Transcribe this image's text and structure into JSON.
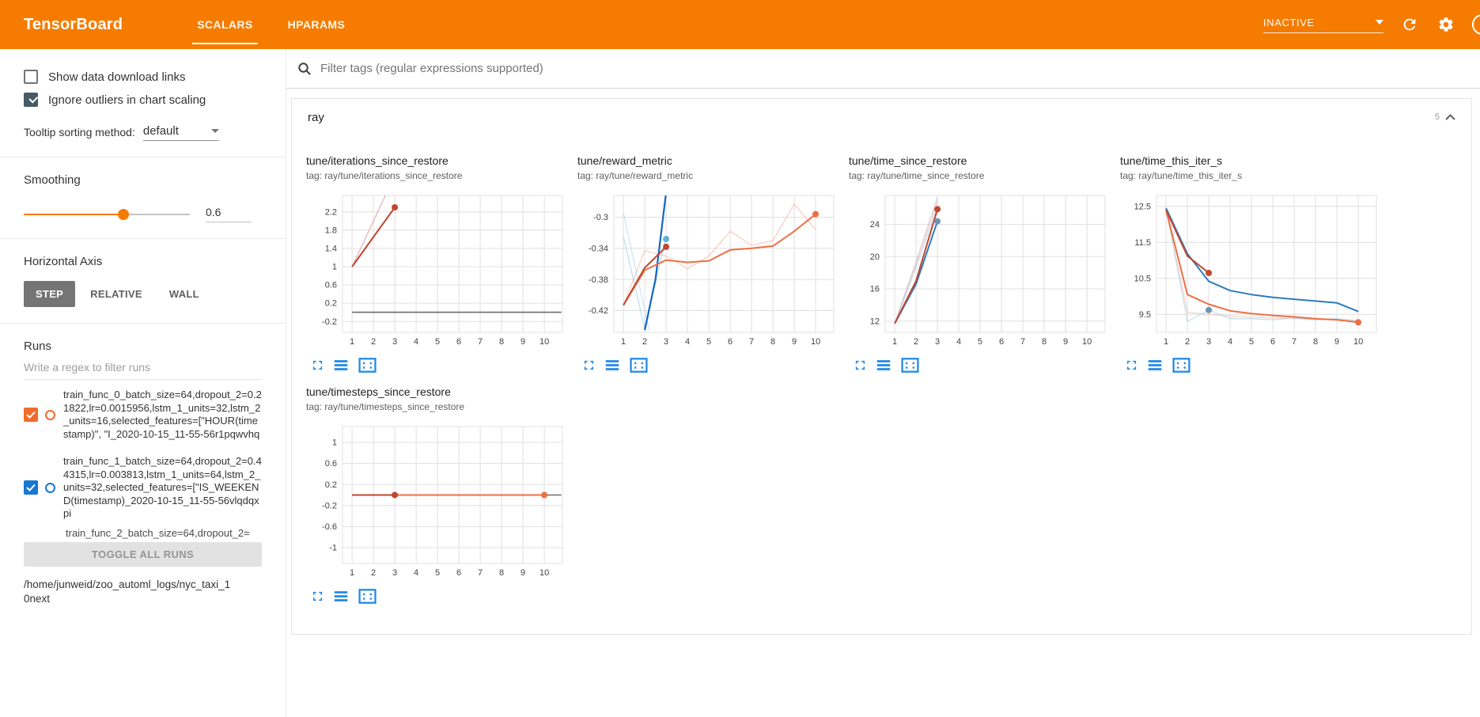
{
  "header": {
    "title": "TensorBoard",
    "tabs": [
      {
        "label": "SCALARS",
        "active": true
      },
      {
        "label": "HPARAMS",
        "active": false
      }
    ],
    "status": "INACTIVE"
  },
  "sidebar": {
    "checkboxes": [
      {
        "label": "Show data download links",
        "checked": false
      },
      {
        "label": "Ignore outliers in chart scaling",
        "checked": true
      }
    ],
    "tooltip_sort_label": "Tooltip sorting method:",
    "tooltip_sort_value": "default",
    "smoothing_label": "Smoothing",
    "smoothing_value": "0.6",
    "horizontal_axis_label": "Horizontal Axis",
    "axis_buttons": [
      {
        "label": "STEP",
        "active": true
      },
      {
        "label": "RELATIVE",
        "active": false
      },
      {
        "label": "WALL",
        "active": false
      }
    ],
    "runs_label": "Runs",
    "runs_filter_placeholder": "Write a regex to filter runs",
    "runs": [
      {
        "label": "train_func_0_batch_size=64,dropout_2=0.21822,lr=0.0015956,lstm_1_units=32,lstm_2_units=16,selected_features=[\"HOUR(timestamp)\", \"I_2020-10-15_11-55-56r1pqwvhq",
        "checked": true,
        "color": "#ef6c2d"
      },
      {
        "label": "train_func_1_batch_size=64,dropout_2=0.44315,lr=0.003813,lstm_1_units=64,lstm_2_units=32,selected_features=[\"IS_WEEKEND(timestamp)_2020-10-15_11-55-56vlqdqxpi",
        "checked": true,
        "color": "#1976d2"
      },
      {
        "label": "train_func_2_batch_size=64,dropout_2=",
        "checked": true,
        "color": "#ef6c2d",
        "partial": true
      }
    ],
    "toggle_all_label": "TOGGLE ALL RUNS",
    "log_path": "/home/junweid/zoo_automl_logs/nyc_taxi_10next"
  },
  "main": {
    "filter_placeholder": "Filter tags (regular expressions supported)",
    "section": {
      "title": "ray",
      "count": "5"
    }
  },
  "chart_data": [
    {
      "type": "line",
      "title": "tune/iterations_since_restore",
      "tag": "tag: ray/tune/iterations_since_restore",
      "xlim": [
        0.55,
        10.85
      ],
      "ylim": [
        -0.44,
        2.56
      ],
      "xticks": [
        1,
        2,
        3,
        4,
        5,
        6,
        7,
        8,
        9,
        10
      ],
      "yticks": [
        -0.2,
        0.2,
        0.6,
        1,
        1.4,
        1.8,
        2.2
      ],
      "series": [
        {
          "name": "run-gray-baseline",
          "color": "#6b6b6b",
          "width": 1.6,
          "opacity": 1,
          "points": [
            [
              1,
              0
            ],
            [
              10.8,
              0
            ]
          ]
        },
        {
          "name": "train_func-unsmoothed-a",
          "color": "#b9b2d4",
          "width": 1.3,
          "opacity": 0.6,
          "points": [
            [
              1,
              1
            ],
            [
              2,
              2
            ],
            [
              3,
              3
            ]
          ]
        },
        {
          "name": "train_func_0-unsmoothed",
          "color": "#f4a894",
          "width": 1.3,
          "opacity": 0.55,
          "points": [
            [
              1,
              1
            ],
            [
              2,
              2
            ],
            [
              3,
              3
            ]
          ]
        },
        {
          "name": "train_func_0-smoothed",
          "color": "#bf4730",
          "width": 2,
          "opacity": 1,
          "points": [
            [
              1,
              1
            ],
            [
              2,
              1.65
            ],
            [
              3,
              2.3
            ]
          ]
        }
      ],
      "dots": [
        {
          "x": 3,
          "y": 2.3,
          "color": "#bf4730"
        }
      ]
    },
    {
      "type": "line",
      "title": "tune/reward_metric",
      "tag": "tag: ray/tune/reward_metric",
      "xlim": [
        0.55,
        10.85
      ],
      "ylim": [
        -0.448,
        -0.272
      ],
      "xticks": [
        1,
        2,
        3,
        4,
        5,
        6,
        7,
        8,
        9,
        10
      ],
      "yticks": [
        -0.42,
        -0.38,
        -0.34,
        -0.3
      ],
      "series": [
        {
          "name": "train_func_0-unsmoothed",
          "color": "#f4a894",
          "width": 1.3,
          "opacity": 0.55,
          "points": [
            [
              1,
              -0.413
            ],
            [
              2,
              -0.343
            ],
            [
              3,
              -0.35
            ],
            [
              4,
              -0.366
            ],
            [
              5,
              -0.35
            ],
            [
              6,
              -0.318
            ],
            [
              7,
              -0.336
            ],
            [
              8,
              -0.33
            ],
            [
              9,
              -0.283
            ],
            [
              10,
              -0.316
            ]
          ]
        },
        {
          "name": "train_func_1-unsmoothed",
          "color": "#9fd0ea",
          "width": 1.3,
          "opacity": 0.65,
          "points": [
            [
              1,
              -0.325
            ],
            [
              2,
              -0.443
            ],
            [
              3,
              -0.325
            ]
          ]
        },
        {
          "name": "train_func_1-unsmoothed-b",
          "color": "#9fd0ea",
          "width": 1.3,
          "opacity": 0.5,
          "points": [
            [
              1,
              -0.295
            ],
            [
              2.2,
              -0.445
            ]
          ]
        },
        {
          "name": "train_func_1-smoothed",
          "color": "#1565c0",
          "width": 2.2,
          "opacity": 1,
          "points": [
            [
              2,
              -0.445
            ],
            [
              2.5,
              -0.38
            ],
            [
              3,
              -0.268
            ]
          ]
        },
        {
          "name": "train_func_0-smoothed",
          "color": "#ef6f44",
          "width": 2,
          "opacity": 1,
          "points": [
            [
              1,
              -0.413
            ],
            [
              2,
              -0.368
            ],
            [
              3,
              -0.355
            ],
            [
              4,
              -0.358
            ],
            [
              5,
              -0.356
            ],
            [
              6,
              -0.342
            ],
            [
              7,
              -0.34
            ],
            [
              8,
              -0.337
            ],
            [
              9,
              -0.318
            ],
            [
              10,
              -0.296
            ]
          ]
        },
        {
          "name": "train_func_2-smoothed",
          "color": "#bf4730",
          "width": 2,
          "opacity": 1,
          "points": [
            [
              1,
              -0.413
            ],
            [
              2,
              -0.365
            ],
            [
              3,
              -0.338
            ]
          ]
        }
      ],
      "dots": [
        {
          "x": 3,
          "y": -0.328,
          "color": "#64aed6"
        },
        {
          "x": 3,
          "y": -0.338,
          "color": "#bf4730"
        },
        {
          "x": 10,
          "y": -0.296,
          "color": "#ef6f44"
        }
      ]
    },
    {
      "type": "line",
      "title": "tune/time_since_restore",
      "tag": "tag: ray/tune/time_since_restore",
      "xlim": [
        0.55,
        10.85
      ],
      "ylim": [
        10.6,
        27.6
      ],
      "xticks": [
        1,
        2,
        3,
        4,
        5,
        6,
        7,
        8,
        9,
        10
      ],
      "yticks": [
        12,
        16,
        20,
        24
      ],
      "series": [
        {
          "name": "unsmoothed-a",
          "color": "#b9b2d4",
          "width": 1.3,
          "opacity": 0.55,
          "points": [
            [
              1,
              11.7
            ],
            [
              2,
              19.4
            ],
            [
              3,
              27.4
            ]
          ]
        },
        {
          "name": "train_func_0-unsmoothed",
          "color": "#f4a894",
          "width": 1.3,
          "opacity": 0.5,
          "points": [
            [
              1,
              11.7
            ],
            [
              2,
              19.0
            ],
            [
              3,
              26.9
            ]
          ]
        },
        {
          "name": "train_func_1-unsmoothed",
          "color": "#9fd0ea",
          "width": 1.3,
          "opacity": 0.55,
          "points": [
            [
              1,
              11.7
            ],
            [
              2,
              18.6
            ],
            [
              3,
              26.3
            ]
          ]
        },
        {
          "name": "train_func_1-smoothed",
          "color": "#2e7cbe",
          "width": 2,
          "opacity": 1,
          "points": [
            [
              1,
              11.7
            ],
            [
              2,
              16.6
            ],
            [
              3,
              24.4
            ]
          ]
        },
        {
          "name": "train_func_0-smoothed",
          "color": "#bf4730",
          "width": 2,
          "opacity": 1,
          "points": [
            [
              1,
              11.7
            ],
            [
              2,
              17.0
            ],
            [
              3,
              25.9
            ]
          ]
        }
      ],
      "dots": [
        {
          "x": 3,
          "y": 25.9,
          "color": "#bf4730"
        },
        {
          "x": 3,
          "y": 24.4,
          "color": "#6e95b5"
        }
      ]
    },
    {
      "type": "line",
      "title": "tune/time_this_iter_s",
      "tag": "tag: ray/tune/time_this_iter_s",
      "xlim": [
        0.55,
        10.85
      ],
      "ylim": [
        9.0,
        12.8
      ],
      "xticks": [
        1,
        2,
        3,
        4,
        5,
        6,
        7,
        8,
        9,
        10
      ],
      "yticks": [
        9.5,
        10.5,
        11.5,
        12.5
      ],
      "series": [
        {
          "name": "train_func_0-unsmoothed",
          "color": "#f4a894",
          "width": 1.3,
          "opacity": 0.5,
          "points": [
            [
              1,
              12.4
            ],
            [
              2,
              9.55
            ],
            [
              3,
              9.5
            ],
            [
              4,
              9.45
            ],
            [
              5,
              9.42
            ],
            [
              6,
              9.4
            ],
            [
              7,
              9.38
            ],
            [
              8,
              9.36
            ],
            [
              9,
              9.35
            ],
            [
              10,
              9.3
            ]
          ]
        },
        {
          "name": "train_func_1-unsmoothed",
          "color": "#9fd0ea",
          "width": 1.3,
          "opacity": 0.6,
          "points": [
            [
              1,
              12.45
            ],
            [
              2,
              9.3
            ],
            [
              3,
              9.62
            ],
            [
              4,
              9.38
            ],
            [
              5,
              9.38
            ],
            [
              6,
              9.35
            ],
            [
              7,
              9.4
            ],
            [
              8,
              9.35
            ],
            [
              9,
              9.38
            ],
            [
              10,
              9.33
            ]
          ]
        },
        {
          "name": "train_func_1-smoothed",
          "color": "#2e7cbe",
          "width": 2,
          "opacity": 1,
          "points": [
            [
              1,
              12.45
            ],
            [
              2,
              11.18
            ],
            [
              3,
              10.42
            ],
            [
              4,
              10.16
            ],
            [
              5,
              10.05
            ],
            [
              6,
              9.97
            ],
            [
              7,
              9.92
            ],
            [
              8,
              9.87
            ],
            [
              9,
              9.82
            ],
            [
              10,
              9.58
            ]
          ]
        },
        {
          "name": "train_func_0-smoothed",
          "color": "#ef6f44",
          "width": 2,
          "opacity": 1,
          "points": [
            [
              1,
              12.4
            ],
            [
              2,
              10.05
            ],
            [
              3,
              9.78
            ],
            [
              4,
              9.6
            ],
            [
              5,
              9.52
            ],
            [
              6,
              9.47
            ],
            [
              7,
              9.43
            ],
            [
              8,
              9.38
            ],
            [
              9,
              9.35
            ],
            [
              10,
              9.28
            ]
          ]
        },
        {
          "name": "train_func_2-smoothed",
          "color": "#bf4730",
          "width": 2,
          "opacity": 1,
          "points": [
            [
              1,
              12.4
            ],
            [
              2,
              11.12
            ],
            [
              3,
              10.65
            ]
          ]
        }
      ],
      "dots": [
        {
          "x": 3,
          "y": 10.65,
          "color": "#bf4730"
        },
        {
          "x": 3,
          "y": 9.62,
          "color": "#6e95b5"
        },
        {
          "x": 10,
          "y": 9.28,
          "color": "#ef6f44"
        }
      ]
    },
    {
      "type": "line",
      "title": "tune/timesteps_since_restore",
      "tag": "tag: ray/tune/timesteps_since_restore",
      "xlim": [
        0.55,
        10.85
      ],
      "ylim": [
        -1.3,
        1.3
      ],
      "xticks": [
        1,
        2,
        3,
        4,
        5,
        6,
        7,
        8,
        9,
        10
      ],
      "yticks": [
        -1,
        -0.6,
        -0.2,
        0.2,
        0.6,
        1
      ],
      "series": [
        {
          "name": "run-gray-baseline",
          "color": "#6b6b6b",
          "width": 1.6,
          "opacity": 1,
          "points": [
            [
              1,
              0
            ],
            [
              10.8,
              0
            ]
          ]
        },
        {
          "name": "train_func_0-smoothed",
          "color": "#ef6f44",
          "width": 2,
          "opacity": 1,
          "points": [
            [
              1,
              0
            ],
            [
              10,
              0
            ]
          ]
        },
        {
          "name": "train_func_2-smoothed",
          "color": "#bf4730",
          "width": 2,
          "opacity": 1,
          "points": [
            [
              1,
              0
            ],
            [
              3,
              0
            ]
          ]
        }
      ],
      "dots": [
        {
          "x": 3,
          "y": 0,
          "color": "#bf4730"
        },
        {
          "x": 10,
          "y": 0,
          "color": "#ef6f44"
        }
      ]
    }
  ]
}
